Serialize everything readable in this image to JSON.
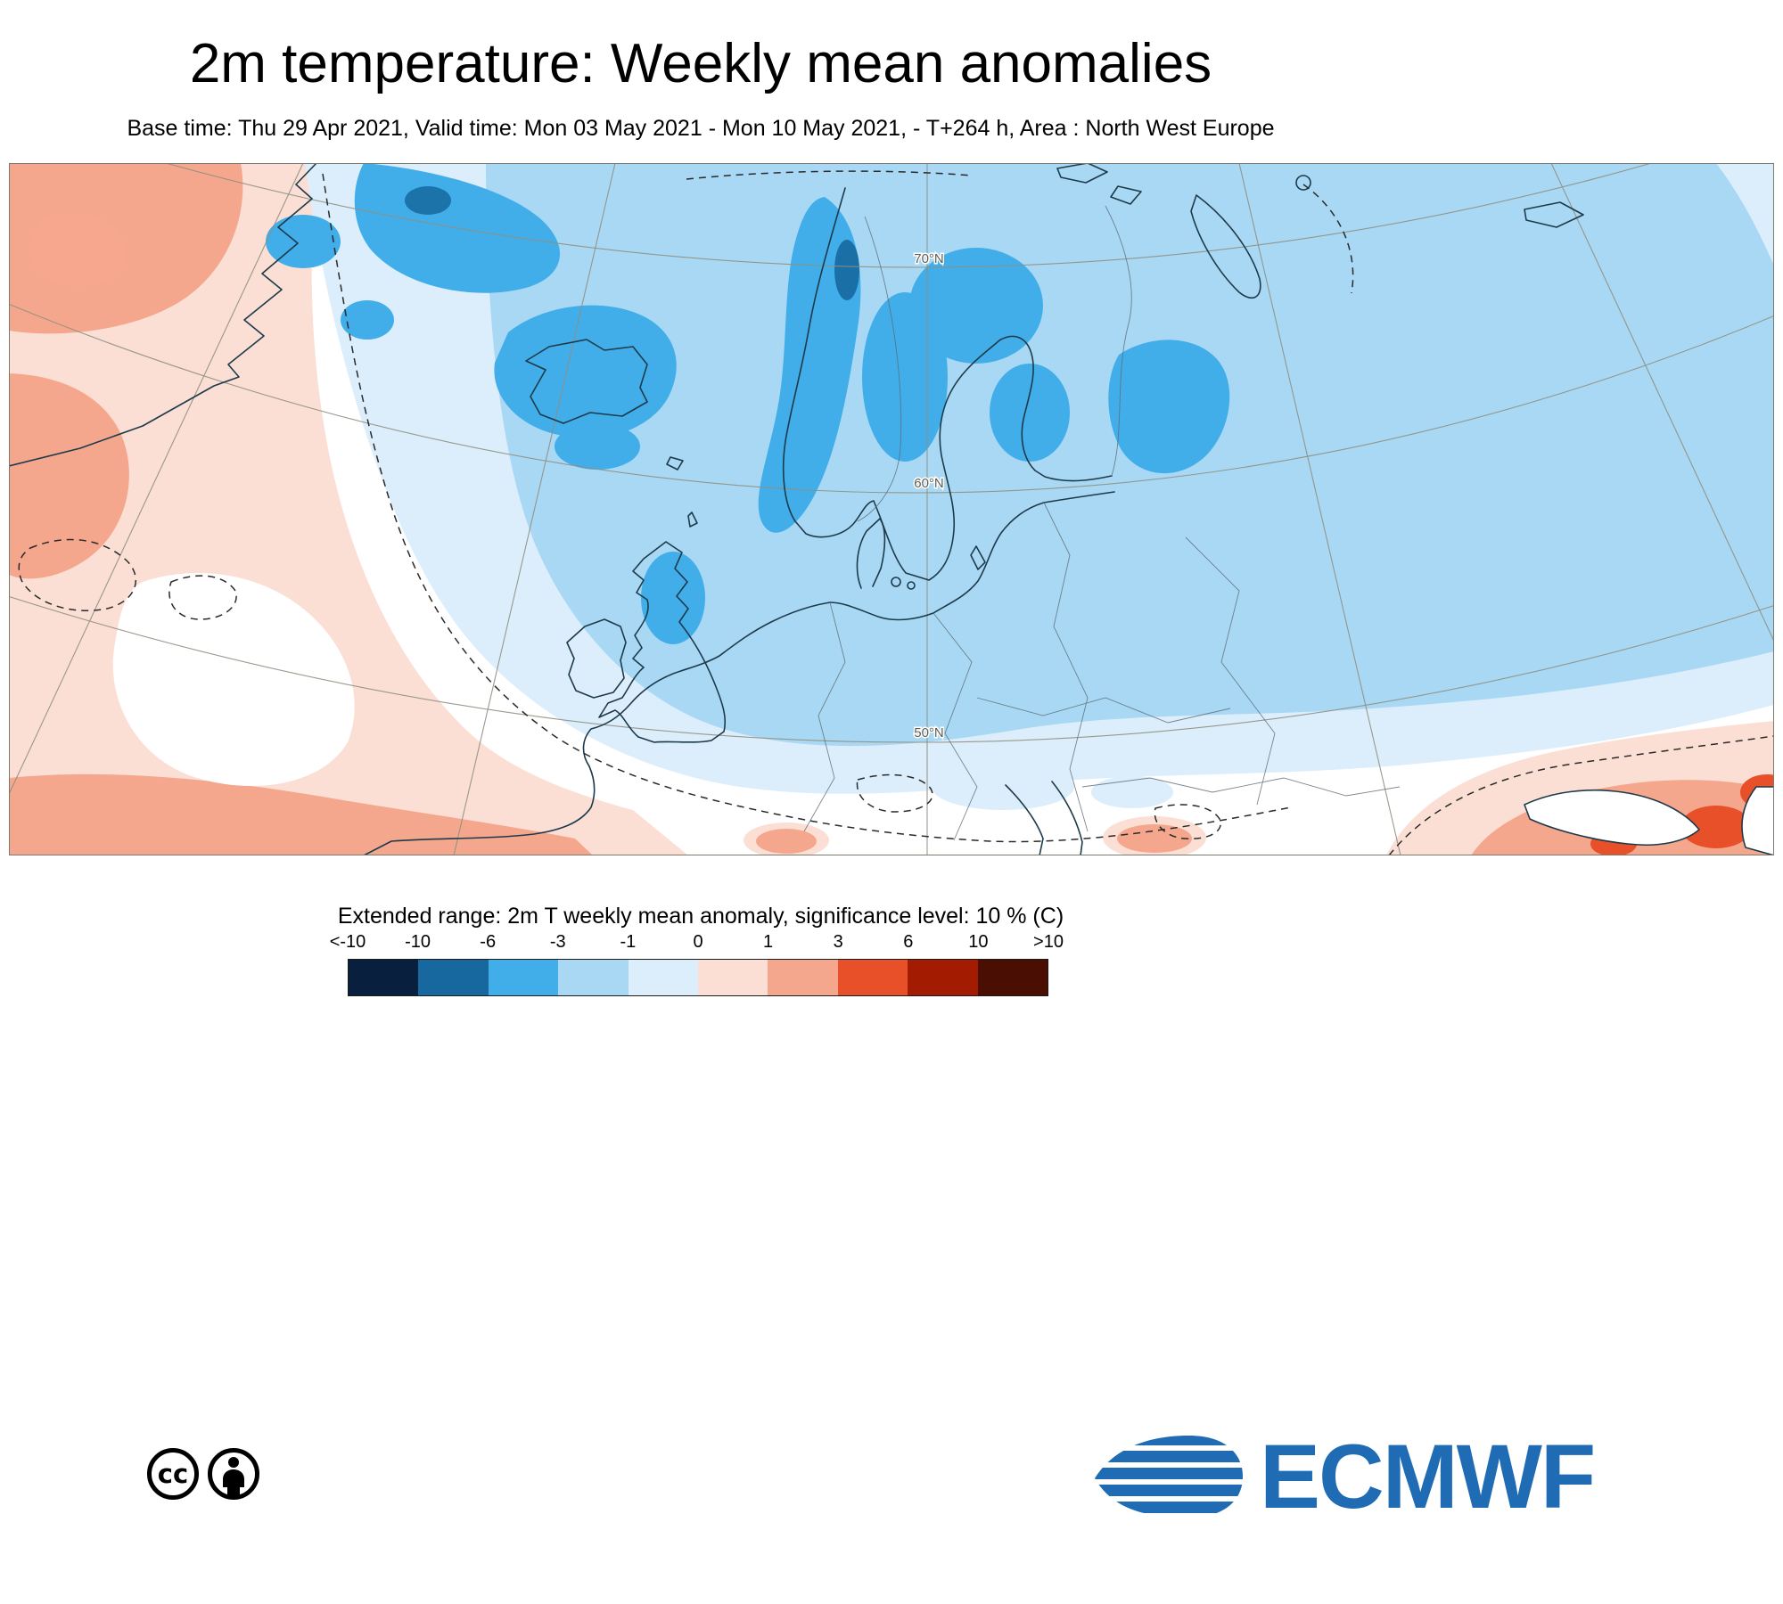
{
  "header": {
    "title": "2m temperature: Weekly mean anomalies",
    "subtitle": "Base time: Thu 29 Apr 2021, Valid time: Mon 03 May 2021 - Mon 10 May 2021, - T+264 h, Area : North West Europe"
  },
  "map": {
    "lat_labels": [
      "70°N",
      "60°N",
      "50°N"
    ],
    "regions": [
      {
        "area": "Norway mountains, northern Sweden/Finland, Iceland, Scotland, NW Russia",
        "anomaly_c": "-6 to -3"
      },
      {
        "area": "UK, Ireland, North Sea, Baltic, Eastern Europe",
        "anomaly_c": "-3 to -1"
      },
      {
        "area": "Central Atlantic fringe and central Europe",
        "anomaly_c": "-1 to 0"
      },
      {
        "area": "West Atlantic (left edge), Greenland, bottom-left ocean band",
        "anomaly_c": "+1 to +3"
      },
      {
        "area": "South-east corner (Turkey / Caucasus / Caspian)",
        "anomaly_c": "+3 to +6"
      }
    ]
  },
  "legend": {
    "title": "Extended range: 2m T weekly mean anomaly, significance level: 10 % (C)",
    "ticks": [
      "<-10",
      "-10",
      "-6",
      "-3",
      "-1",
      "0",
      "1",
      "3",
      "6",
      "10",
      ">10"
    ],
    "colors": [
      "#081f3d",
      "#16689f",
      "#41aeea",
      "#a9d8f4",
      "#dceefb",
      "#fbdfd5",
      "#f5a78e",
      "#e8502a",
      "#a31b00",
      "#4b0e03"
    ]
  },
  "footer": {
    "cc_text": "cc",
    "logo_text": "ECMWF"
  },
  "colors": {
    "ecmwf_blue": "#1f6cb4",
    "graticule": "#8f8f81",
    "coastline": "#1d3a4a"
  }
}
